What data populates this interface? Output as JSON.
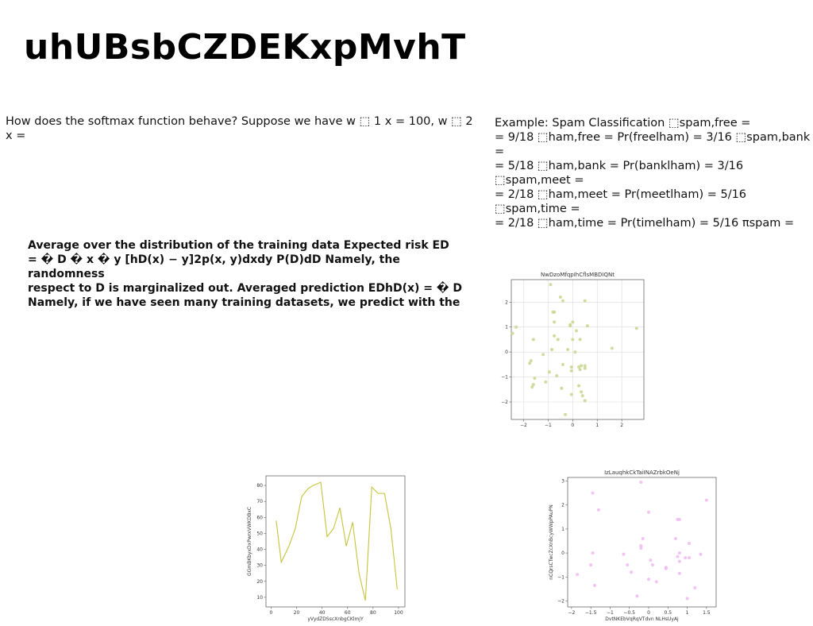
{
  "page": {
    "title": "uhUBsbCZDEKxpMvhT",
    "paragraphs": [
      "How does the softmax function behave? Suppose we have w ⬚ 1 x = 100, w ⬚ 2 x =",
      "Example: Spam Classification ⬚spam,free =\n= 9/18 ⬚ham,free = Pr(freelham) = 3/16 ⬚spam,bank =\n= 5/18 ⬚ham,bank = Pr(banklham) = 3/16 ⬚spam,meet =\n= 2/18 ⬚ham,meet = Pr(meetlham) = 5/16 ⬚spam,time =\n= 2/18 ⬚ham,time = Pr(timelham) = 5/16 πspam =",
      "Average over the distribution of the training data Expected risk ED\n= � D � x � y [hD(x) − y]2p(x, y)dxdy P(D)dD Namely, the randomness\nrespect to D is marginalized out. Averaged prediction EDhD(x) = � D\nNamely, if we have seen many training datasets, we predict with the"
    ]
  },
  "chart_data": [
    {
      "type": "scatter",
      "title": "NwDzoMfqpIhCflsMBDIQNt",
      "xlabel": "",
      "ylabel": "",
      "xlim": [
        -2.5,
        2.9
      ],
      "ylim": [
        -2.7,
        2.9
      ],
      "xticks": [
        -2,
        -1,
        0,
        1,
        2
      ],
      "yticks": [
        -2,
        -1,
        0,
        1,
        2
      ],
      "grid": true,
      "color": "#c8d68e",
      "points": [
        [
          -0.9,
          2.7
        ],
        [
          -0.5,
          2.2
        ],
        [
          -0.4,
          2.05
        ],
        [
          0.5,
          2.05
        ],
        [
          -0.75,
          1.6
        ],
        [
          -0.8,
          1.6
        ],
        [
          -0.75,
          1.2
        ],
        [
          -2.3,
          1.0
        ],
        [
          -0.1,
          1.05
        ],
        [
          0.0,
          1.2
        ],
        [
          0.6,
          1.05
        ],
        [
          -0.1,
          1.1
        ],
        [
          0.15,
          0.85
        ],
        [
          -2.45,
          0.75
        ],
        [
          -0.75,
          0.65
        ],
        [
          -0.6,
          0.5
        ],
        [
          0.0,
          0.5
        ],
        [
          0.3,
          0.5
        ],
        [
          -1.6,
          0.5
        ],
        [
          1.6,
          0.15
        ],
        [
          2.6,
          0.95
        ],
        [
          -0.2,
          0.1
        ],
        [
          -0.85,
          0.1
        ],
        [
          0.1,
          0.0
        ],
        [
          -1.2,
          -0.1
        ],
        [
          -1.7,
          -0.35
        ],
        [
          -1.75,
          -0.45
        ],
        [
          -0.4,
          -0.5
        ],
        [
          0.35,
          -0.55
        ],
        [
          0.25,
          -0.6
        ],
        [
          -0.05,
          -0.6
        ],
        [
          0.5,
          -0.55
        ],
        [
          0.5,
          -0.65
        ],
        [
          0.3,
          -0.7
        ],
        [
          -0.95,
          -0.8
        ],
        [
          -0.65,
          -0.95
        ],
        [
          -0.05,
          -0.75
        ],
        [
          -1.55,
          -1.05
        ],
        [
          -1.1,
          -1.2
        ],
        [
          -1.6,
          -1.3
        ],
        [
          -1.65,
          -1.4
        ],
        [
          0.25,
          -1.35
        ],
        [
          -0.45,
          -1.45
        ],
        [
          0.35,
          -1.6
        ],
        [
          0.4,
          -1.75
        ],
        [
          0.5,
          -1.95
        ],
        [
          -0.05,
          -1.7
        ],
        [
          -0.3,
          -2.5
        ]
      ]
    },
    {
      "type": "line",
      "title": "",
      "xlabel": "yVydZDSscXnbgCKlmjY",
      "ylabel": "GGmBKbyxDxPwrxVWKDBxC",
      "xlim": [
        -4,
        105
      ],
      "ylim": [
        4,
        86
      ],
      "xticks": [
        0,
        20,
        40,
        60,
        80,
        100
      ],
      "yticks": [
        10,
        20,
        30,
        40,
        50,
        60,
        70,
        80
      ],
      "grid": false,
      "color": "#c6c43a",
      "x": [
        4,
        8,
        14,
        19,
        24,
        29,
        33,
        39,
        44,
        49,
        54,
        59,
        64,
        69,
        74,
        79,
        84,
        89,
        94,
        99
      ],
      "y": [
        58,
        32,
        42,
        53,
        73,
        78,
        80,
        82,
        48,
        53,
        66,
        42,
        57,
        25,
        8,
        79,
        75,
        75,
        53,
        15
      ]
    },
    {
      "type": "scatter",
      "title": "IzLauqhkCkTaiINAZrbkOeNj",
      "xlabel": "DvtNKEbVqRqVTdvn NLHsUyAj",
      "ylabel": "nCQrsCTwcZcXnBcyWWpPAuPN",
      "xlim": [
        -2.1,
        1.75
      ],
      "ylim": [
        -2.25,
        3.15
      ],
      "xticks": [
        -2.0,
        -1.5,
        -1.0,
        -0.5,
        0.0,
        0.5,
        1.0,
        1.5
      ],
      "yticks": [
        -2,
        -1,
        0,
        1,
        2,
        3
      ],
      "grid": false,
      "color": "#f0b8f2",
      "points": [
        [
          -0.2,
          2.95
        ],
        [
          -1.45,
          2.5
        ],
        [
          1.5,
          2.2
        ],
        [
          -1.3,
          1.8
        ],
        [
          0.0,
          1.7
        ],
        [
          0.75,
          1.4
        ],
        [
          0.8,
          1.4
        ],
        [
          0.7,
          0.6
        ],
        [
          -0.15,
          0.6
        ],
        [
          1.05,
          0.4
        ],
        [
          -0.2,
          0.3
        ],
        [
          -0.2,
          0.2
        ],
        [
          -1.45,
          0.0
        ],
        [
          -0.65,
          -0.05
        ],
        [
          0.8,
          0.0
        ],
        [
          1.35,
          -0.05
        ],
        [
          0.95,
          -0.2
        ],
        [
          1.05,
          -0.2
        ],
        [
          0.75,
          -0.15
        ],
        [
          0.05,
          -0.3
        ],
        [
          0.1,
          -0.5
        ],
        [
          0.8,
          -0.35
        ],
        [
          -0.55,
          -0.5
        ],
        [
          -1.5,
          -0.5
        ],
        [
          0.45,
          -0.6
        ],
        [
          0.45,
          -0.65
        ],
        [
          -0.45,
          -0.8
        ],
        [
          -1.85,
          -0.9
        ],
        [
          0.8,
          -0.85
        ],
        [
          0.0,
          -1.1
        ],
        [
          0.2,
          -1.2
        ],
        [
          -1.4,
          -1.35
        ],
        [
          1.2,
          -1.45
        ],
        [
          -0.3,
          -1.8
        ],
        [
          1.0,
          -1.9
        ]
      ]
    }
  ]
}
